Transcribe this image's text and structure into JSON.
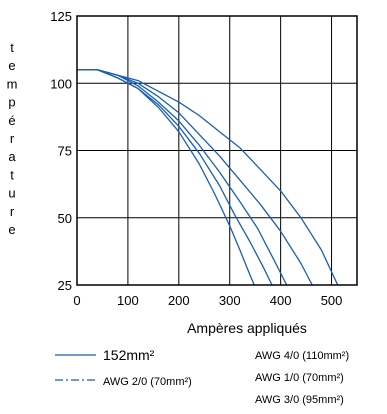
{
  "chart_data": {
    "type": "line",
    "title": "",
    "xlabel": "Ampères appliqués",
    "ylabel": "température",
    "xlim": [
      0,
      550
    ],
    "ylim": [
      25,
      125
    ],
    "x_ticks": [
      "0",
      "100",
      "200",
      "300",
      "400",
      "500"
    ],
    "y_ticks": [
      "125",
      "100",
      "75",
      "50",
      "25"
    ],
    "x_tick_values": [
      0,
      100,
      200,
      300,
      400,
      500
    ],
    "y_tick_values": [
      125,
      100,
      75,
      50,
      25
    ],
    "grid": true,
    "line_color": "#1a5fb4",
    "legend": {
      "placement": "bottom",
      "left_items": [
        {
          "label": "152mm²",
          "style": "solid"
        },
        {
          "label": "AWG 2/0 (70mm²)",
          "style": "dashdot"
        }
      ],
      "right_items": [
        {
          "label": "AWG 4/0 (110mm²)"
        },
        {
          "label": "AWG 1/0 (70mm²)"
        },
        {
          "label": "AWG 3/0 (95mm²)"
        }
      ]
    },
    "series": [
      {
        "x": [
          0,
          40,
          80,
          120,
          160,
          200,
          240,
          270,
          300,
          320,
          335,
          348
        ],
        "y": [
          105,
          105,
          102,
          98,
          91,
          82,
          70,
          59,
          47,
          38,
          31,
          25
        ]
      },
      {
        "x": [
          0,
          40,
          80,
          120,
          160,
          200,
          240,
          280,
          310,
          340,
          365,
          383
        ],
        "y": [
          105,
          105,
          102,
          98,
          92,
          84,
          74,
          62,
          51,
          41,
          32,
          25
        ]
      },
      {
        "x": [
          0,
          40,
          80,
          120,
          160,
          200,
          240,
          280,
          320,
          355,
          385,
          412
        ],
        "y": [
          105,
          105,
          103,
          99,
          93,
          86,
          77,
          67,
          56,
          46,
          35,
          25
        ]
      },
      {
        "x": [
          0,
          40,
          80,
          120,
          160,
          200,
          240,
          280,
          320,
          360,
          400,
          440,
          462
        ],
        "y": [
          105,
          105,
          103,
          100,
          95,
          89,
          81,
          73,
          64,
          55,
          45,
          33,
          25
        ]
      },
      {
        "x": [
          0,
          40,
          80,
          120,
          160,
          200,
          240,
          280,
          320,
          360,
          400,
          440,
          480,
          512
        ],
        "y": [
          105,
          105,
          103,
          101,
          97,
          93,
          88,
          82,
          76,
          68,
          60,
          50,
          38,
          25
        ]
      }
    ]
  }
}
